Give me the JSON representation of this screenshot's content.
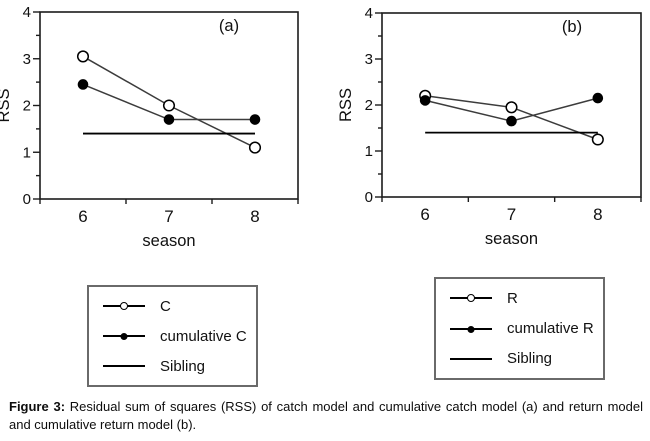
{
  "caption": {
    "label": "Figure 3:",
    "text": "Residual sum of squares (RSS) of catch model and cumulative catch model (a) and return model and cumulative return model (b)."
  },
  "colors": {
    "background": "#ffffff",
    "axis": "#1c1c1c",
    "series_line": "#3c3c3c",
    "marker": "#000000",
    "legend_border": "#6a6a6a"
  },
  "chart_data": [
    {
      "type": "line",
      "panel_label": "(a)",
      "xlabel": "season",
      "ylabel": "RSS",
      "ylim": [
        0,
        4
      ],
      "y_major_ticks": [
        0,
        1,
        2,
        3,
        4
      ],
      "y_minor_step": 0.5,
      "categories": [
        "6",
        "7",
        "8"
      ],
      "grid": false,
      "legend_position": "below",
      "series": [
        {
          "name": "C",
          "marker": "open-circle",
          "values": [
            3.05,
            2.0,
            1.1
          ]
        },
        {
          "name": "cumulative C",
          "marker": "filled-circle",
          "values": [
            2.45,
            1.7,
            1.7
          ]
        },
        {
          "name": "Sibling",
          "marker": "none",
          "values": [
            1.4,
            1.4,
            1.4
          ]
        }
      ]
    },
    {
      "type": "line",
      "panel_label": "(b)",
      "xlabel": "season",
      "ylabel": "RSS",
      "ylim": [
        0,
        4
      ],
      "y_major_ticks": [
        0,
        1,
        2,
        3,
        4
      ],
      "y_minor_step": 0.5,
      "categories": [
        "6",
        "7",
        "8"
      ],
      "grid": false,
      "legend_position": "below",
      "series": [
        {
          "name": "R",
          "marker": "open-circle",
          "values": [
            2.2,
            1.95,
            1.25
          ]
        },
        {
          "name": "cumulative R",
          "marker": "filled-circle",
          "values": [
            2.1,
            1.65,
            2.15
          ]
        },
        {
          "name": "Sibling",
          "marker": "none",
          "values": [
            1.4,
            1.4,
            1.4
          ]
        }
      ]
    }
  ]
}
